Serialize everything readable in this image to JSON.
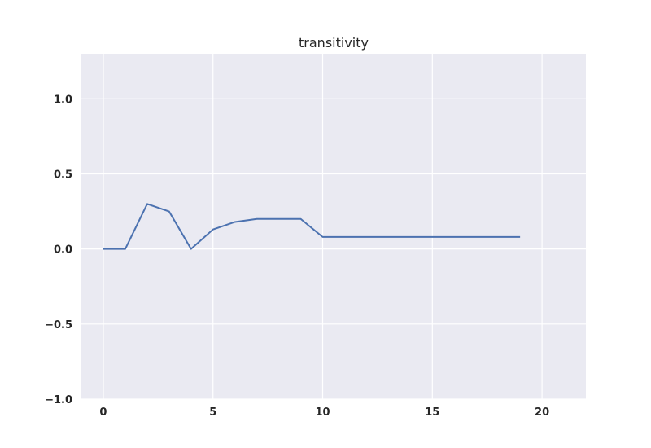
{
  "chart_data": {
    "type": "line",
    "title": "transitivity",
    "xlabel": "",
    "ylabel": "",
    "xlim": [
      -1,
      22
    ],
    "ylim": [
      -1.0,
      1.3
    ],
    "xticks": [
      0,
      5,
      10,
      15,
      20
    ],
    "xtick_labels": [
      "0",
      "5",
      "10",
      "15",
      "20"
    ],
    "yticks": [
      -1.0,
      -0.5,
      0.0,
      0.5,
      1.0
    ],
    "ytick_labels": [
      "−1.0",
      "−0.5",
      "0.0",
      "0.5",
      "1.0"
    ],
    "grid": true,
    "colors": {
      "background": "#eaeaf2",
      "grid": "#ffffff",
      "line": "#4c72b0"
    },
    "series": [
      {
        "x": [
          0,
          1,
          2,
          3,
          4,
          5,
          6,
          7,
          8,
          9,
          10,
          11,
          12,
          13,
          14,
          15,
          16,
          17,
          18,
          19
        ],
        "values": [
          0.0,
          0.0,
          0.3,
          0.25,
          0.0,
          0.13,
          0.18,
          0.2,
          0.2,
          0.2,
          0.08,
          0.08,
          0.08,
          0.08,
          0.08,
          0.08,
          0.08,
          0.08,
          0.08,
          0.08
        ]
      }
    ]
  }
}
